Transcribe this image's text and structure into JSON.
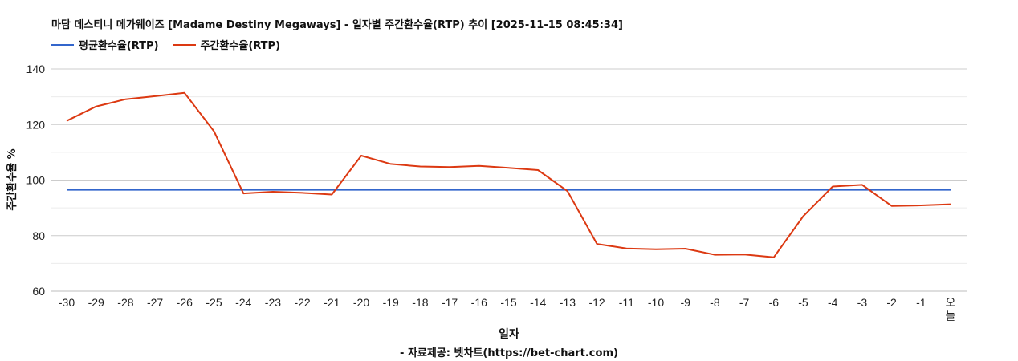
{
  "chart_data": {
    "type": "line",
    "title": "마담 데스티니 메가웨이즈 [Madame Destiny Megaways] - 일자별 주간환수율(RTP) 추이 [2025-11-15 08:45:34]",
    "xlabel": "일자",
    "ylabel": "주간환수율 %",
    "source": "- 자료제공: 벳차트(https://bet-chart.com)",
    "ylim": [
      60,
      140
    ],
    "yticks": [
      60,
      80,
      100,
      120,
      140
    ],
    "grid": true,
    "legend_position": "top-left",
    "categories": [
      "-30",
      "-29",
      "-28",
      "-27",
      "-26",
      "-25",
      "-24",
      "-23",
      "-22",
      "-21",
      "-20",
      "-19",
      "-18",
      "-17",
      "-16",
      "-15",
      "-14",
      "-13",
      "-12",
      "-11",
      "-10",
      "-9",
      "-8",
      "-7",
      "-6",
      "-5",
      "-4",
      "-3",
      "-2",
      "-1",
      "오늘"
    ],
    "series": [
      {
        "name": "평균환수율(RTP)",
        "color": "#3366cc",
        "values": [
          96.5,
          96.5,
          96.5,
          96.5,
          96.5,
          96.5,
          96.5,
          96.5,
          96.5,
          96.5,
          96.5,
          96.5,
          96.5,
          96.5,
          96.5,
          96.5,
          96.5,
          96.5,
          96.5,
          96.5,
          96.5,
          96.5,
          96.5,
          96.5,
          96.5,
          96.5,
          96.5,
          96.5,
          96.5,
          96.5,
          96.5
        ]
      },
      {
        "name": "주간환수율(RTP)",
        "color": "#dc3912",
        "values": [
          121.3,
          126.5,
          129.1,
          130.2,
          131.4,
          117.6,
          95.2,
          95.8,
          95.4,
          94.8,
          108.8,
          105.8,
          104.9,
          104.7,
          105.1,
          104.4,
          103.6,
          96.0,
          77.0,
          75.4,
          75.1,
          75.3,
          73.1,
          73.2,
          72.2,
          87.0,
          97.7,
          98.3,
          90.7,
          90.9,
          91.3
        ]
      }
    ]
  }
}
